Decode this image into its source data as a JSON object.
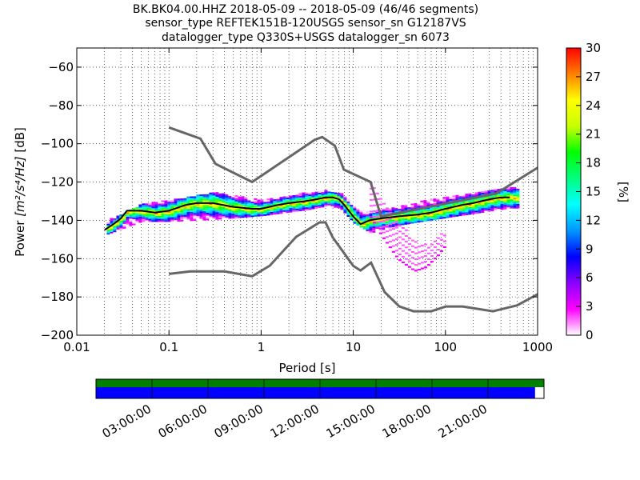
{
  "title_lines": [
    "BK.BK04.00.HHZ   2018-05-09 -- 2018-05-09  (46/46 segments)",
    "sensor_type REFTEK151B-120USGS sensor_sn G12187VS",
    "datalogger_type Q330S+USGS datalogger_sn 6073"
  ],
  "chart_data": {
    "type": "heatmap",
    "xlabel": "Period [s]",
    "ylabel_prefix": "Power ",
    "ylabel_units": "[m²/s⁴/Hz]",
    "ylabel_suffix": " [dB]",
    "xscale": "log",
    "xlim": [
      0.01,
      1000
    ],
    "ylim": [
      -200,
      -50
    ],
    "xticks": [
      0.01,
      0.1,
      1,
      10,
      100,
      1000
    ],
    "xtick_labels": [
      "0.01",
      "0.1",
      "1",
      "10",
      "100",
      "1000"
    ],
    "yticks": [
      -200,
      -180,
      -160,
      -140,
      -120,
      -100,
      -80,
      -60
    ],
    "ytick_labels": [
      "−200",
      "−180",
      "−160",
      "−140",
      "−120",
      "−100",
      "−80",
      "−60"
    ],
    "grid": true,
    "colorbar": {
      "label": "[%]",
      "range": [
        0,
        30
      ],
      "ticks": [
        0,
        3,
        6,
        9,
        12,
        15,
        18,
        21,
        24,
        27,
        30
      ],
      "colors": [
        "#ffffff",
        "#ff00ff",
        "#8a00ff",
        "#0000ff",
        "#0096ff",
        "#00ffff",
        "#00ff80",
        "#00ff00",
        "#c8ff00",
        "#ffff00",
        "#ff8000",
        "#ff0000"
      ]
    },
    "new_high_noise_model": {
      "period": [
        0.1,
        0.22,
        0.32,
        0.8,
        3.8,
        4.6,
        6.3,
        7.9,
        15.4,
        20,
        354.8,
        1000
      ],
      "power": [
        -91.5,
        -97.4,
        -110.5,
        -120,
        -98,
        -96.5,
        -101,
        -113.5,
        -120,
        -138,
        -126,
        -112.5
      ]
    },
    "new_low_noise_model": {
      "period": [
        0.1,
        0.17,
        0.4,
        0.8,
        1.24,
        2.4,
        4.3,
        5,
        6,
        10,
        12,
        15.6,
        21.9,
        31.6,
        45,
        70,
        101,
        154,
        328,
        600,
        1000
      ],
      "power": [
        -168,
        -166.7,
        -166.7,
        -169.2,
        -163.7,
        -148.6,
        -141.1,
        -141.1,
        -149,
        -163.8,
        -166.2,
        -162.1,
        -177.5,
        -185,
        -187.5,
        -187.5,
        -185,
        -185,
        -187.5,
        -184.4,
        -178.6
      ]
    },
    "mode_curve": {
      "period": [
        0.02,
        0.025,
        0.03,
        0.035,
        0.05,
        0.07,
        0.1,
        0.15,
        0.2,
        0.3,
        0.5,
        0.8,
        1,
        1.5,
        2,
        3,
        4,
        5,
        6,
        7,
        8,
        10,
        12,
        15,
        20,
        30,
        50,
        70,
        100,
        150,
        200,
        300,
        400,
        500
      ],
      "power": [
        -145,
        -142,
        -139,
        -135,
        -135,
        -136,
        -135,
        -132,
        -131,
        -131,
        -133,
        -134,
        -134,
        -132,
        -131,
        -130,
        -129,
        -128,
        -128,
        -129,
        -132,
        -138,
        -142,
        -140,
        -139,
        -138,
        -137,
        -136,
        -134,
        -132,
        -131,
        -129,
        -128,
        -128
      ]
    },
    "distribution_bands": [
      {
        "period": [
          0.02,
          0.05,
          0.1,
          0.3,
          1,
          3,
          5,
          7,
          10,
          15,
          30,
          100,
          500
        ],
        "low": [
          -147,
          -140,
          -140,
          -139,
          -137,
          -134,
          -132,
          -133,
          -141,
          -146,
          -142,
          -138,
          -133
        ],
        "high": [
          -140,
          -131,
          -129,
          -125,
          -129,
          -125,
          -124,
          -125,
          -131,
          -136,
          -132,
          -127,
          -122
        ]
      }
    ],
    "outlier_regions": [
      {
        "period": [
          15,
          20,
          30,
          45,
          60,
          80,
          100
        ],
        "low": [
          -138,
          -148,
          -160,
          -166,
          -164,
          -158,
          -152
        ],
        "high": [
          -120,
          -128,
          -140,
          -150,
          -152,
          -148,
          -144
        ]
      }
    ]
  },
  "timeline": {
    "tick_labels": [
      "03:00:00",
      "06:00:00",
      "09:00:00",
      "12:00:00",
      "15:00:00",
      "18:00:00",
      "21:00:00"
    ],
    "coverage_top_color": "#008000",
    "coverage_bottom_color": "#0000ff",
    "coverage_end_fraction": 0.98
  }
}
